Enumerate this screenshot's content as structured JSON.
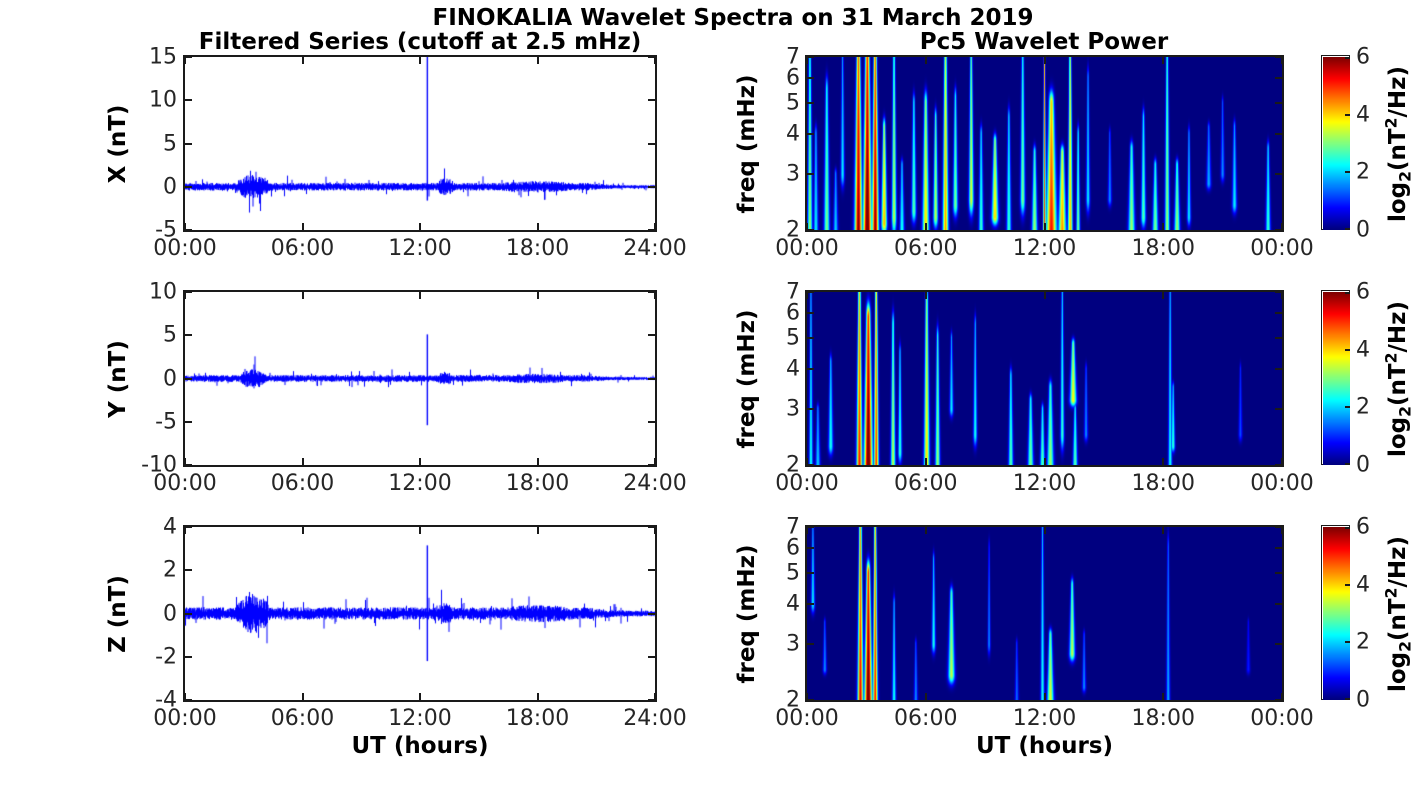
{
  "figure": {
    "title": "FINOKALIA Wavelet Spectra on 31 March 2019",
    "left_column_title": "Filtered Series (cutoff at 2.5 mHz)",
    "right_column_title": "Pc5 Wavelet Power",
    "background_color": "#ffffff",
    "axis_color": "#1a1a1a",
    "tick_text_color": "#262626",
    "trace_color": "#0000ff",
    "colormap": "jet"
  },
  "chart_data": [
    {
      "type": "line",
      "panel": "timeseries",
      "row": 0,
      "component": "X",
      "ylabel": "X (nT)",
      "xlabel": "",
      "ylim": [
        -5,
        15
      ],
      "yticks": [
        -5,
        0,
        5,
        10,
        15
      ],
      "xlim_hours": [
        0,
        24
      ],
      "xtick_hours": [
        0,
        6,
        12,
        18,
        24
      ],
      "xtick_labels": [
        "00:00",
        "06:00",
        "12:00",
        "18:00",
        "24:00"
      ],
      "line_color": "#0000ff",
      "noise_amp": 0.34,
      "quiet_after_hour": 20.5,
      "quiet_factor": 0.38,
      "seed": 11,
      "bursts": [
        {
          "start": 2.6,
          "end": 4.3,
          "amp_mult": 3.4
        },
        {
          "start": 12.9,
          "end": 13.7,
          "amp_mult": 2.4
        },
        {
          "start": 16.2,
          "end": 19.6,
          "amp_mult": 1.5
        }
      ],
      "spikes": [
        {
          "hour": 12.35,
          "max": 15.0,
          "min": -1.6
        }
      ]
    },
    {
      "type": "line",
      "panel": "timeseries",
      "row": 1,
      "component": "Y",
      "ylabel": "Y (nT)",
      "xlabel": "",
      "ylim": [
        -10,
        10
      ],
      "yticks": [
        -10,
        -5,
        0,
        5,
        10
      ],
      "xlim_hours": [
        0,
        24
      ],
      "xtick_hours": [
        0,
        6,
        12,
        18,
        24
      ],
      "xtick_labels": [
        "00:00",
        "06:00",
        "12:00",
        "18:00",
        "24:00"
      ],
      "line_color": "#0000ff",
      "noise_amp": 0.3,
      "quiet_after_hour": 20.5,
      "quiet_factor": 0.4,
      "seed": 22,
      "bursts": [
        {
          "start": 2.8,
          "end": 4.1,
          "amp_mult": 3.0
        },
        {
          "start": 12.9,
          "end": 13.6,
          "amp_mult": 2.0
        },
        {
          "start": 16.5,
          "end": 19.3,
          "amp_mult": 1.4
        }
      ],
      "spikes": [
        {
          "hour": 12.35,
          "max": 5.1,
          "min": -5.4
        }
      ]
    },
    {
      "type": "line",
      "panel": "timeseries",
      "row": 2,
      "component": "Z",
      "ylabel": "Z (nT)",
      "xlabel": "UT (hours)",
      "ylim": [
        -4,
        4
      ],
      "yticks": [
        -4,
        -2,
        0,
        2,
        4
      ],
      "xlim_hours": [
        0,
        24
      ],
      "xtick_hours": [
        0,
        6,
        12,
        18,
        24
      ],
      "xtick_labels": [
        "00:00",
        "06:00",
        "12:00",
        "18:00",
        "24:00"
      ],
      "line_color": "#0000ff",
      "noise_amp": 0.22,
      "quiet_after_hour": 20.5,
      "quiet_factor": 0.45,
      "seed": 33,
      "bursts": [
        {
          "start": 2.6,
          "end": 4.3,
          "amp_mult": 3.2
        },
        {
          "start": 12.9,
          "end": 13.6,
          "amp_mult": 1.9
        },
        {
          "start": 16.5,
          "end": 19.5,
          "amp_mult": 1.4
        }
      ],
      "spikes": [
        {
          "hour": 12.35,
          "max": 3.15,
          "min": -2.2
        }
      ]
    },
    {
      "type": "heatmap",
      "panel": "spectrogram",
      "row": 0,
      "component": "X",
      "ylabel": "freq (mHz)",
      "xlabel": "",
      "yscale": "log",
      "ylim_mhz": [
        2,
        7
      ],
      "yticks_mhz": [
        2,
        3,
        4,
        5,
        6,
        7
      ],
      "xlim_hours": [
        0,
        24
      ],
      "xtick_hours": [
        0,
        6,
        12,
        18,
        24
      ],
      "xtick_labels": [
        "00:00",
        "06:00",
        "12:00",
        "18:00",
        "00:00"
      ],
      "clim": [
        0,
        6
      ],
      "colorbar_ticks": [
        0,
        2,
        4,
        6
      ],
      "colorbar_label": {
        "pre": "log",
        "sub": "2",
        "mid": "(nT",
        "sup": "2",
        "post": "/Hz)"
      },
      "events_format": "[hour_center, freq_low_mHz, freq_high_mHz, peak_log2_power, half_width_hours]",
      "events": [
        [
          0.15,
          2.0,
          7.0,
          3.2,
          0.1
        ],
        [
          0.45,
          2.0,
          4.0,
          2.2,
          0.1
        ],
        [
          1.0,
          2.0,
          5.5,
          3.0,
          0.12
        ],
        [
          1.45,
          2.0,
          3.0,
          2.0,
          0.1
        ],
        [
          1.8,
          3.0,
          7.0,
          2.2,
          0.08
        ],
        [
          2.6,
          2.0,
          7.0,
          6.0,
          0.16
        ],
        [
          3.05,
          2.0,
          7.0,
          6.5,
          0.18
        ],
        [
          3.45,
          2.0,
          7.0,
          6.0,
          0.14
        ],
        [
          3.9,
          2.1,
          4.2,
          4.2,
          0.12
        ],
        [
          4.4,
          2.2,
          7.0,
          3.4,
          0.1
        ],
        [
          4.8,
          2.0,
          3.2,
          2.4,
          0.1
        ],
        [
          5.4,
          2.3,
          5.0,
          2.8,
          0.1
        ],
        [
          6.0,
          2.0,
          5.0,
          4.0,
          0.14
        ],
        [
          6.5,
          2.2,
          4.5,
          3.4,
          0.1
        ],
        [
          7.0,
          2.0,
          7.0,
          4.4,
          0.12
        ],
        [
          7.5,
          2.4,
          5.2,
          3.0,
          0.1
        ],
        [
          8.3,
          2.5,
          7.0,
          3.6,
          0.1
        ],
        [
          8.8,
          2.0,
          4.0,
          2.6,
          0.1
        ],
        [
          9.5,
          2.2,
          3.8,
          4.0,
          0.14
        ],
        [
          10.2,
          2.0,
          4.5,
          2.6,
          0.1
        ],
        [
          10.9,
          2.5,
          7.0,
          3.0,
          0.1
        ],
        [
          11.5,
          2.0,
          3.5,
          3.2,
          0.12
        ],
        [
          12.0,
          2.0,
          7.2,
          5.0,
          0.06
        ],
        [
          12.35,
          2.0,
          5.0,
          5.2,
          0.22
        ],
        [
          12.9,
          2.0,
          3.5,
          4.4,
          0.16
        ],
        [
          13.3,
          2.0,
          7.0,
          4.2,
          0.1
        ],
        [
          13.7,
          2.0,
          4.0,
          3.0,
          0.08
        ],
        [
          14.2,
          2.5,
          6.0,
          2.2,
          0.08
        ],
        [
          15.3,
          2.5,
          4.0,
          1.6,
          0.08
        ],
        [
          16.4,
          2.0,
          3.6,
          3.2,
          0.14
        ],
        [
          17.0,
          2.2,
          4.5,
          2.8,
          0.1
        ],
        [
          17.6,
          2.0,
          3.2,
          3.0,
          0.12
        ],
        [
          18.2,
          2.0,
          7.0,
          3.2,
          0.1
        ],
        [
          18.7,
          2.0,
          3.2,
          3.2,
          0.12
        ],
        [
          19.3,
          2.2,
          4.0,
          2.2,
          0.08
        ],
        [
          20.3,
          2.8,
          4.2,
          1.8,
          0.1
        ],
        [
          21.0,
          3.0,
          5.0,
          1.6,
          0.08
        ],
        [
          21.6,
          2.4,
          4.2,
          2.2,
          0.1
        ],
        [
          23.3,
          2.0,
          3.6,
          2.6,
          0.1
        ]
      ]
    },
    {
      "type": "heatmap",
      "panel": "spectrogram",
      "row": 1,
      "component": "Y",
      "ylabel": "freq (mHz)",
      "xlabel": "",
      "yscale": "log",
      "ylim_mhz": [
        2,
        7
      ],
      "yticks_mhz": [
        2,
        3,
        4,
        5,
        6,
        7
      ],
      "xlim_hours": [
        0,
        24
      ],
      "xtick_hours": [
        0,
        6,
        12,
        18,
        24
      ],
      "xtick_labels": [
        "00:00",
        "06:00",
        "12:00",
        "18:00",
        "00:00"
      ],
      "clim": [
        0,
        6
      ],
      "colorbar_ticks": [
        0,
        2,
        4,
        6
      ],
      "colorbar_label": {
        "pre": "log",
        "sub": "2",
        "mid": "(nT",
        "sup": "2",
        "post": "/Hz)"
      },
      "events_format": "[hour_center, freq_low_mHz, freq_high_mHz, peak_log2_power, half_width_hours]",
      "events": [
        [
          0.2,
          2.0,
          7.0,
          2.4,
          0.08
        ],
        [
          0.55,
          2.0,
          3.0,
          2.0,
          0.1
        ],
        [
          1.2,
          2.3,
          4.2,
          2.4,
          0.1
        ],
        [
          2.65,
          2.0,
          6.8,
          5.2,
          0.12
        ],
        [
          3.1,
          2.0,
          5.8,
          6.5,
          0.18
        ],
        [
          3.5,
          2.0,
          7.0,
          5.0,
          0.1
        ],
        [
          4.35,
          2.0,
          5.5,
          3.4,
          0.1
        ],
        [
          4.7,
          2.2,
          4.5,
          2.6,
          0.08
        ],
        [
          6.05,
          2.0,
          6.5,
          4.0,
          0.12
        ],
        [
          6.6,
          2.0,
          5.0,
          3.2,
          0.1
        ],
        [
          7.3,
          3.0,
          5.0,
          2.2,
          0.08
        ],
        [
          8.5,
          2.5,
          5.5,
          2.4,
          0.08
        ],
        [
          10.3,
          2.0,
          3.8,
          2.8,
          0.1
        ],
        [
          11.3,
          2.0,
          3.2,
          3.0,
          0.12
        ],
        [
          11.9,
          2.0,
          3.0,
          2.8,
          0.1
        ],
        [
          12.3,
          2.0,
          3.5,
          3.2,
          0.14
        ],
        [
          12.9,
          2.5,
          7.0,
          2.6,
          0.08
        ],
        [
          13.45,
          3.2,
          4.8,
          3.8,
          0.14
        ],
        [
          13.55,
          2.0,
          3.0,
          2.8,
          0.1
        ],
        [
          14.1,
          2.5,
          4.0,
          1.6,
          0.08
        ],
        [
          18.35,
          2.0,
          7.0,
          2.4,
          0.08
        ],
        [
          18.5,
          2.3,
          3.5,
          2.6,
          0.08
        ],
        [
          21.9,
          2.5,
          4.0,
          1.2,
          0.08
        ]
      ]
    },
    {
      "type": "heatmap",
      "panel": "spectrogram",
      "row": 2,
      "component": "Z",
      "ylabel": "freq (mHz)",
      "xlabel": "UT (hours)",
      "yscale": "log",
      "ylim_mhz": [
        2,
        7
      ],
      "yticks_mhz": [
        2,
        3,
        4,
        5,
        6,
        7
      ],
      "xlim_hours": [
        0,
        24
      ],
      "xtick_hours": [
        0,
        6,
        12,
        18,
        24
      ],
      "xtick_labels": [
        "00:00",
        "06:00",
        "12:00",
        "18:00",
        "00:00"
      ],
      "clim": [
        0,
        6
      ],
      "colorbar_ticks": [
        0,
        2,
        4,
        6
      ],
      "colorbar_label": {
        "pre": "log",
        "sub": "2",
        "mid": "(nT",
        "sup": "2",
        "post": "/Hz)"
      },
      "events_format": "[hour_center, freq_low_mHz, freq_high_mHz, peak_log2_power, half_width_hours]",
      "events": [
        [
          0.3,
          4.0,
          7.0,
          2.2,
          0.08
        ],
        [
          0.9,
          2.5,
          3.5,
          1.6,
          0.08
        ],
        [
          2.7,
          2.0,
          7.0,
          5.4,
          0.12
        ],
        [
          3.1,
          2.0,
          5.0,
          6.5,
          0.16
        ],
        [
          3.45,
          2.0,
          7.0,
          5.2,
          0.1
        ],
        [
          4.4,
          2.0,
          4.0,
          2.4,
          0.08
        ],
        [
          5.5,
          2.0,
          3.0,
          1.6,
          0.08
        ],
        [
          6.4,
          3.0,
          5.5,
          2.4,
          0.08
        ],
        [
          7.3,
          2.4,
          4.3,
          3.4,
          0.14
        ],
        [
          9.2,
          3.0,
          6.0,
          1.6,
          0.06
        ],
        [
          10.6,
          2.0,
          3.0,
          1.4,
          0.08
        ],
        [
          11.9,
          2.0,
          7.0,
          2.4,
          0.08
        ],
        [
          12.3,
          2.0,
          3.2,
          3.6,
          0.14
        ],
        [
          13.4,
          2.8,
          4.6,
          3.4,
          0.12
        ],
        [
          14.0,
          2.2,
          3.2,
          1.6,
          0.08
        ],
        [
          18.25,
          2.0,
          6.0,
          1.8,
          0.08
        ],
        [
          22.3,
          2.5,
          3.5,
          0.9,
          0.08
        ]
      ]
    }
  ]
}
